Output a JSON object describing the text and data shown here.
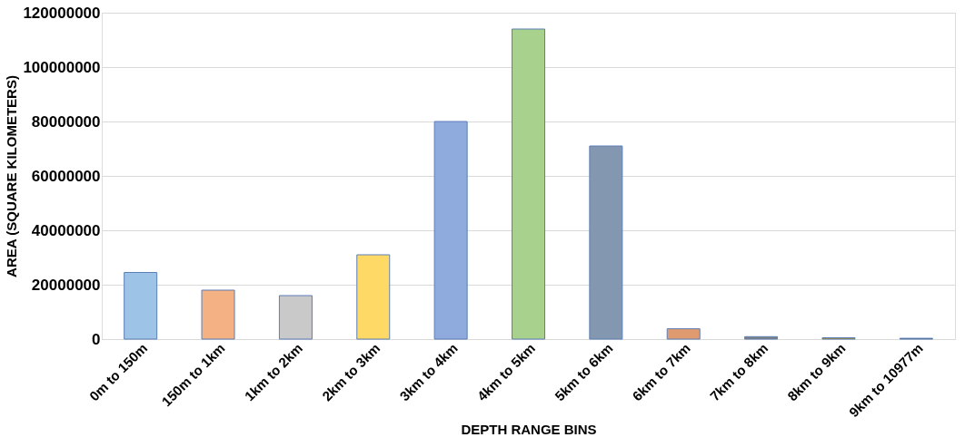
{
  "chart_data": {
    "type": "bar",
    "xlabel": "DEPTH RANGE BINS",
    "ylabel": "AREA (SQUARE KILOMETERS)",
    "categories": [
      "0m to 150m",
      "150m to  1km",
      "1km to 2km",
      "2km to 3km",
      "3km to 4km",
      "4km to 5km",
      "5km to 6km",
      "6km to 7km",
      "7km to 8km",
      "8km to 9km",
      "9km to 10977m"
    ],
    "values": [
      24500000,
      18000000,
      16000000,
      31000000,
      80000000,
      114000000,
      71000000,
      3800000,
      900000,
      500000,
      300000
    ],
    "colors": [
      "#9dc3e6",
      "#f4b183",
      "#c9c9c9",
      "#ffd966",
      "#8faadc",
      "#a9d18e",
      "#8497b0",
      "#e09a70",
      "#7f7f7f",
      "#bf9000",
      "#44546a"
    ],
    "ylim": [
      0,
      120000000
    ],
    "yticks": [
      0,
      20000000,
      40000000,
      60000000,
      80000000,
      100000000,
      120000000
    ],
    "grid": "y"
  }
}
